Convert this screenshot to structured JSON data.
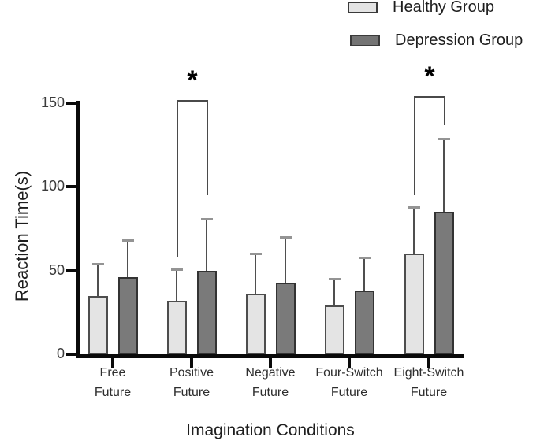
{
  "legend": {
    "items": [
      {
        "label": "Healthy Group",
        "fill": "#e4e4e4",
        "border": "#3a3a3a"
      },
      {
        "label": "Depression Group",
        "fill": "#747474",
        "border": "#2e2e2e"
      }
    ]
  },
  "chart_data": {
    "type": "bar",
    "title": "",
    "xlabel": "Imagination Conditions",
    "ylabel": "Reaction Time(s)",
    "ylim": [
      0,
      150
    ],
    "yticks": [
      0,
      50,
      100,
      150
    ],
    "grid": false,
    "legend_position": "top-right",
    "categories": [
      "Free Future",
      "Positive Future",
      "Negative Future",
      "Four-Switch Future",
      "Eight-Switch Future"
    ],
    "category_lines": [
      [
        "Free",
        "Future"
      ],
      [
        "Positive",
        "Future"
      ],
      [
        "Negative",
        "Future"
      ],
      [
        "Four-Switch",
        "Future"
      ],
      [
        "Eight-Switch",
        "Future"
      ]
    ],
    "series": [
      {
        "name": "Healthy Group",
        "fill": "#e4e4e4",
        "border": "#4d4d4d",
        "values": [
          35,
          32,
          36,
          29,
          60
        ],
        "error_up": [
          19,
          19,
          24,
          16,
          28
        ]
      },
      {
        "name": "Depression Group",
        "fill": "#7a7a7a",
        "border": "#333333",
        "values": [
          46,
          50,
          43,
          38,
          85
        ],
        "error_up": [
          22,
          31,
          27,
          20,
          44
        ]
      }
    ],
    "significance": [
      {
        "symbol": "*",
        "category_index": 1,
        "top_value": 152,
        "left_leg_value": 58,
        "right_leg_value": 95
      },
      {
        "symbol": "*",
        "category_index": 4,
        "top_value": 154,
        "left_leg_value": 95,
        "right_leg_value": 137
      }
    ]
  }
}
